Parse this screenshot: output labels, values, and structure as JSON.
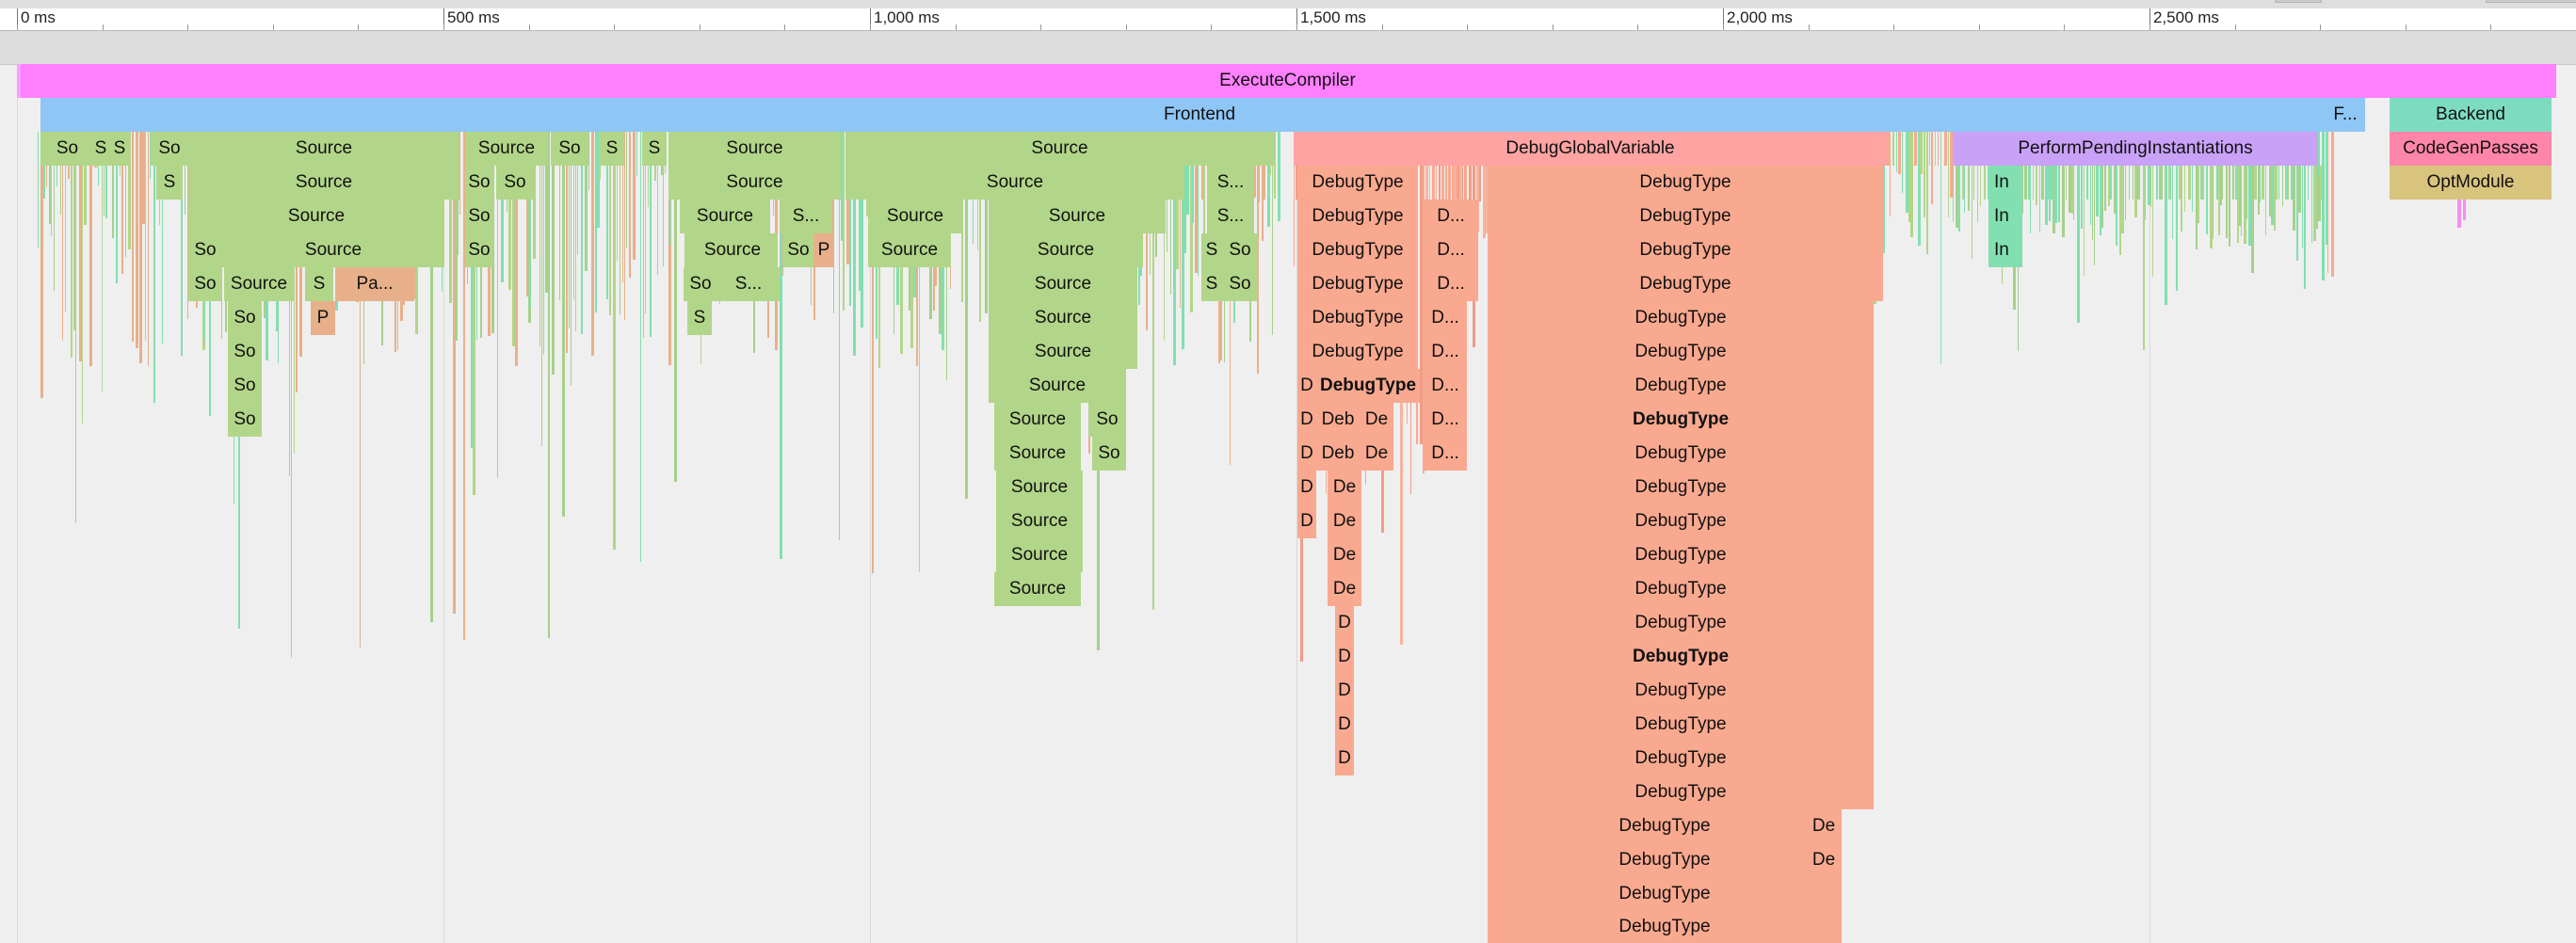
{
  "ruler": {
    "labels": [
      "0 ms",
      "500 ms",
      "1,000 ms",
      "1,500 ms",
      "2,000 ms",
      "2,500 ms"
    ]
  },
  "colors": {
    "execute": "#ff80ff",
    "frontend": "#8ec6f5",
    "source": "#b2d689",
    "source_alt": "#a6d08b",
    "debug_global": "#ffa3a3",
    "debug_type": "#f9a98f",
    "parse": "#e8b08a",
    "pending": "#c9a1f7",
    "backend": "#7ddcc0",
    "codegen": "#ff85aa",
    "optmodule": "#d9c47e",
    "teal": "#82dfb0",
    "pink_thin": "#f48ef0"
  },
  "blocks": {
    "execute_compiler": "ExecuteCompiler",
    "frontend": "Frontend",
    "frontend_short": "F...",
    "backend": "Backend",
    "debug_global_variable": "DebugGlobalVariable",
    "perform_pending": "PerformPendingInstantiations",
    "codegen_passes": "CodeGenPasses",
    "opt_module": "OptModule",
    "source": "Source",
    "so": "So",
    "s": "S",
    "s_dots": "S...",
    "pa_dots": "Pa...",
    "p": "P",
    "debug_type": "DebugType",
    "d_dots": "D...",
    "d": "D",
    "deb": "Deb",
    "de": "De",
    "in": "In"
  }
}
